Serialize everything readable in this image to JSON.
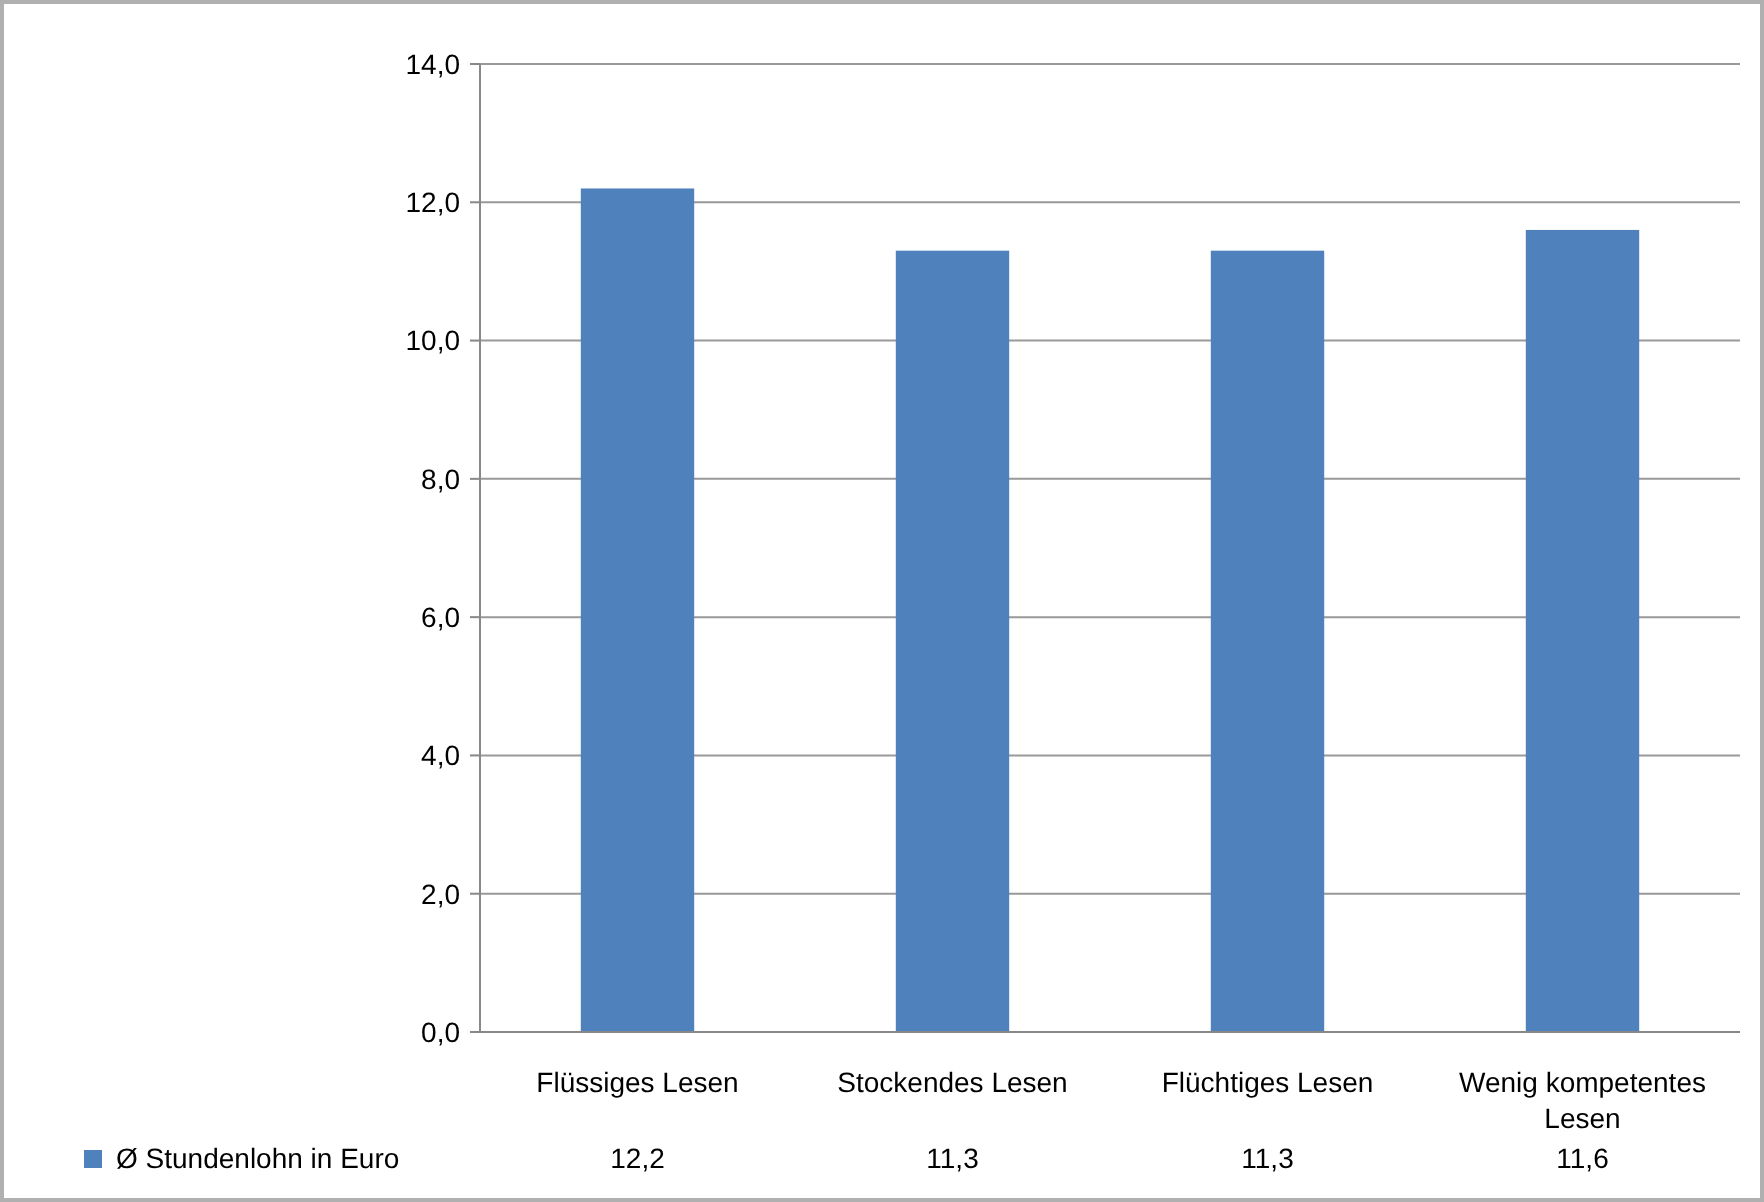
{
  "chart_data": {
    "type": "bar",
    "categories": [
      "Flüssiges Lesen",
      "Stockendes Lesen",
      "Flüchtiges Lesen",
      "Wenig kompetentes Lesen"
    ],
    "series": [
      {
        "name": "Ø Stundenlohn in Euro",
        "color": "#4f81bd",
        "values": [
          12.2,
          11.3,
          11.3,
          11.6
        ],
        "value_labels": [
          "12,2",
          "11,3",
          "11,3",
          "11,6"
        ]
      }
    ],
    "ylim": [
      0,
      14
    ],
    "yticks": [
      {
        "value": 0,
        "label": "0,0"
      },
      {
        "value": 2,
        "label": "2,0"
      },
      {
        "value": 4,
        "label": "4,0"
      },
      {
        "value": 6,
        "label": "6,0"
      },
      {
        "value": 8,
        "label": "8,0"
      },
      {
        "value": 10,
        "label": "10,0"
      },
      {
        "value": 12,
        "label": "12,0"
      },
      {
        "value": 14,
        "label": "14,0"
      }
    ],
    "grid": "y",
    "legend": "bottom"
  }
}
